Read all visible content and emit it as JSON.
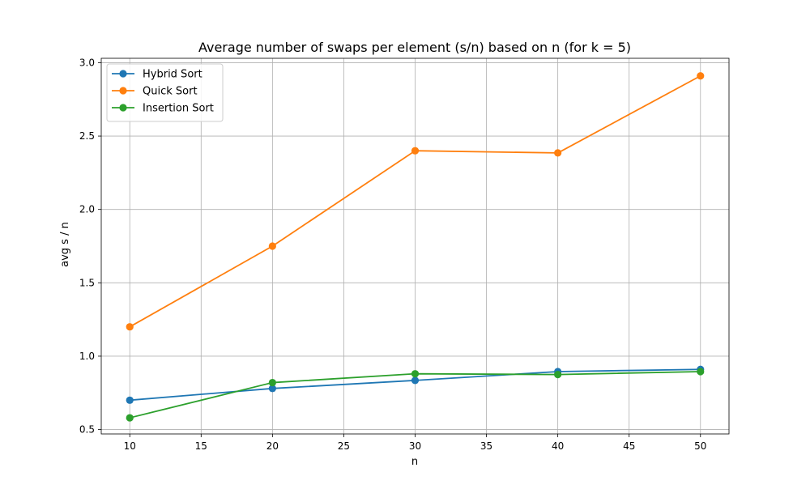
{
  "chart_data": {
    "type": "line",
    "title": "Average number of swaps per element (s/n) based on n (for k = 5)",
    "xlabel": "n",
    "ylabel": "avg s / n",
    "xlim": [
      8,
      52
    ],
    "ylim": [
      0.47,
      3.03
    ],
    "x_ticks": [
      10,
      15,
      20,
      25,
      30,
      35,
      40,
      45,
      50
    ],
    "y_ticks": [
      0.5,
      1.0,
      1.5,
      2.0,
      2.5,
      3.0
    ],
    "x_tick_labels": [
      "10",
      "15",
      "20",
      "25",
      "30",
      "35",
      "40",
      "45",
      "50"
    ],
    "y_tick_labels": [
      "0.5",
      "1.0",
      "1.5",
      "2.0",
      "2.5",
      "3.0"
    ],
    "grid": true,
    "legend_position": "top-left",
    "x": [
      10,
      20,
      30,
      40,
      50
    ],
    "series": [
      {
        "name": "Hybrid Sort",
        "color": "#1f77b4",
        "values": [
          0.7,
          0.78,
          0.835,
          0.895,
          0.91
        ]
      },
      {
        "name": "Quick Sort",
        "color": "#ff7f0e",
        "values": [
          1.2,
          1.75,
          2.4,
          2.385,
          2.91
        ]
      },
      {
        "name": "Insertion Sort",
        "color": "#2ca02c",
        "values": [
          0.58,
          0.82,
          0.88,
          0.875,
          0.895
        ]
      }
    ]
  }
}
